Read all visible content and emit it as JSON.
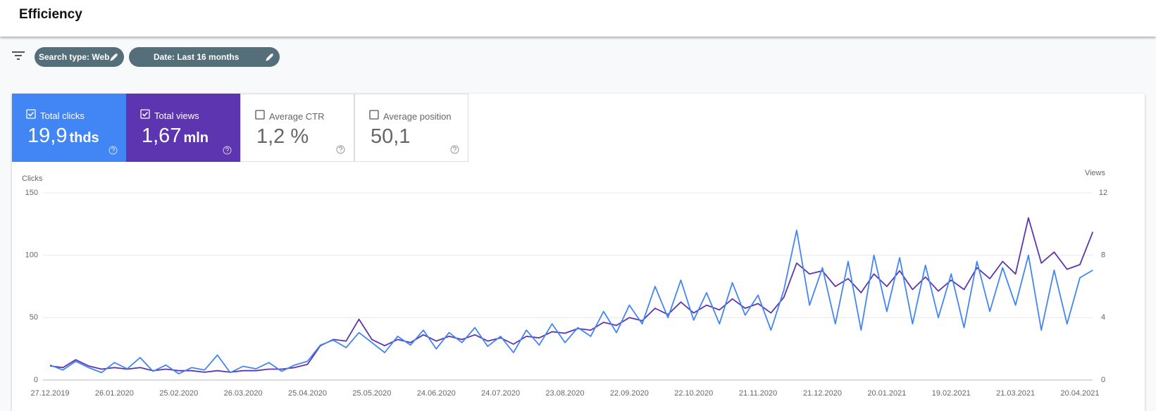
{
  "header": {
    "title": "Efficiency"
  },
  "filters": [
    {
      "label": "Search type: Web"
    },
    {
      "label": "Date: Last 16 months"
    }
  ],
  "metrics": [
    {
      "label": "Total clicks",
      "value": "19,9",
      "unit": "thds",
      "checked": true,
      "color": "#4285f4"
    },
    {
      "label": "Total views",
      "value": "1,67",
      "unit": "mln",
      "checked": true,
      "color": "#5e35b1"
    },
    {
      "label": "Average CTR",
      "value": "1,2 %",
      "checked": false
    },
    {
      "label": "Average position",
      "value": "50,1",
      "checked": false
    }
  ],
  "chart_data": {
    "type": "line",
    "y_label": "Clicks",
    "y2_label": "Views",
    "categories": [
      "27.12.2019",
      null,
      null,
      null,
      null,
      "26.01.2020",
      null,
      null,
      null,
      null,
      "25.02.2020",
      null,
      null,
      null,
      null,
      "26.03.2020",
      null,
      null,
      null,
      null,
      "25.04.2020",
      null,
      null,
      null,
      null,
      "25.05.2020",
      null,
      null,
      null,
      null,
      "24.06.2020",
      null,
      null,
      null,
      null,
      "24.07.2020",
      null,
      null,
      null,
      null,
      "23.08.2020",
      null,
      null,
      null,
      null,
      "22.09.2020",
      null,
      null,
      null,
      null,
      "22.10.2020",
      null,
      null,
      null,
      null,
      "21.11.2020",
      null,
      null,
      null,
      null,
      "21.12.2020",
      null,
      null,
      null,
      null,
      "20.01.2021",
      null,
      null,
      null,
      null,
      "19.02.2021",
      null,
      null,
      null,
      null,
      "21.03.2021",
      null,
      null,
      null,
      null,
      "20.04.2021",
      null
    ],
    "series": [
      {
        "name": "Total clicks",
        "color": "#4285f4",
        "values": [
          12,
          8,
          15,
          10,
          6,
          14,
          9,
          18,
          7,
          12,
          5,
          10,
          8,
          20,
          6,
          11,
          9,
          14,
          7,
          12,
          15,
          28,
          32,
          26,
          38,
          30,
          22,
          35,
          28,
          40,
          25,
          38,
          30,
          42,
          27,
          35,
          22,
          40,
          28,
          45,
          30,
          42,
          35,
          55,
          38,
          60,
          45,
          75,
          50,
          80,
          48,
          70,
          45,
          78,
          52,
          68,
          40,
          72,
          120,
          60,
          90,
          45,
          95,
          40,
          100,
          55,
          98,
          45,
          92,
          50,
          85,
          42,
          95,
          55,
          90,
          60,
          100,
          40,
          88,
          45,
          82,
          88
        ]
      },
      {
        "name": "Total views",
        "color": "#5e35b1",
        "axis": "y2",
        "values": [
          0.9,
          0.8,
          1.3,
          0.9,
          0.7,
          0.8,
          0.7,
          0.8,
          0.6,
          0.7,
          0.6,
          0.6,
          0.5,
          0.6,
          0.5,
          0.6,
          0.6,
          0.7,
          0.7,
          0.8,
          1.0,
          2.2,
          2.6,
          2.5,
          3.9,
          2.6,
          2.2,
          2.6,
          2.4,
          2.9,
          2.5,
          2.8,
          2.6,
          2.9,
          2.5,
          2.7,
          2.3,
          2.8,
          2.7,
          3.1,
          3.0,
          3.3,
          3.2,
          3.7,
          3.5,
          4.0,
          3.8,
          4.6,
          4.2,
          5.0,
          4.3,
          4.8,
          4.5,
          5.2,
          4.6,
          4.9,
          4.3,
          5.3,
          7.5,
          6.8,
          7.0,
          6.0,
          6.5,
          5.6,
          6.8,
          6.0,
          7.0,
          5.8,
          6.6,
          5.7,
          6.4,
          5.8,
          7.2,
          6.5,
          7.6,
          6.8,
          10.4,
          7.5,
          8.2,
          7.1,
          7.4,
          9.5
        ]
      }
    ],
    "ylim": [
      0,
      150
    ],
    "yticks": [
      0,
      50,
      100,
      150
    ],
    "y2lim": [
      0,
      12
    ],
    "y2ticks": [
      0,
      4,
      8,
      12
    ],
    "grid": true
  }
}
